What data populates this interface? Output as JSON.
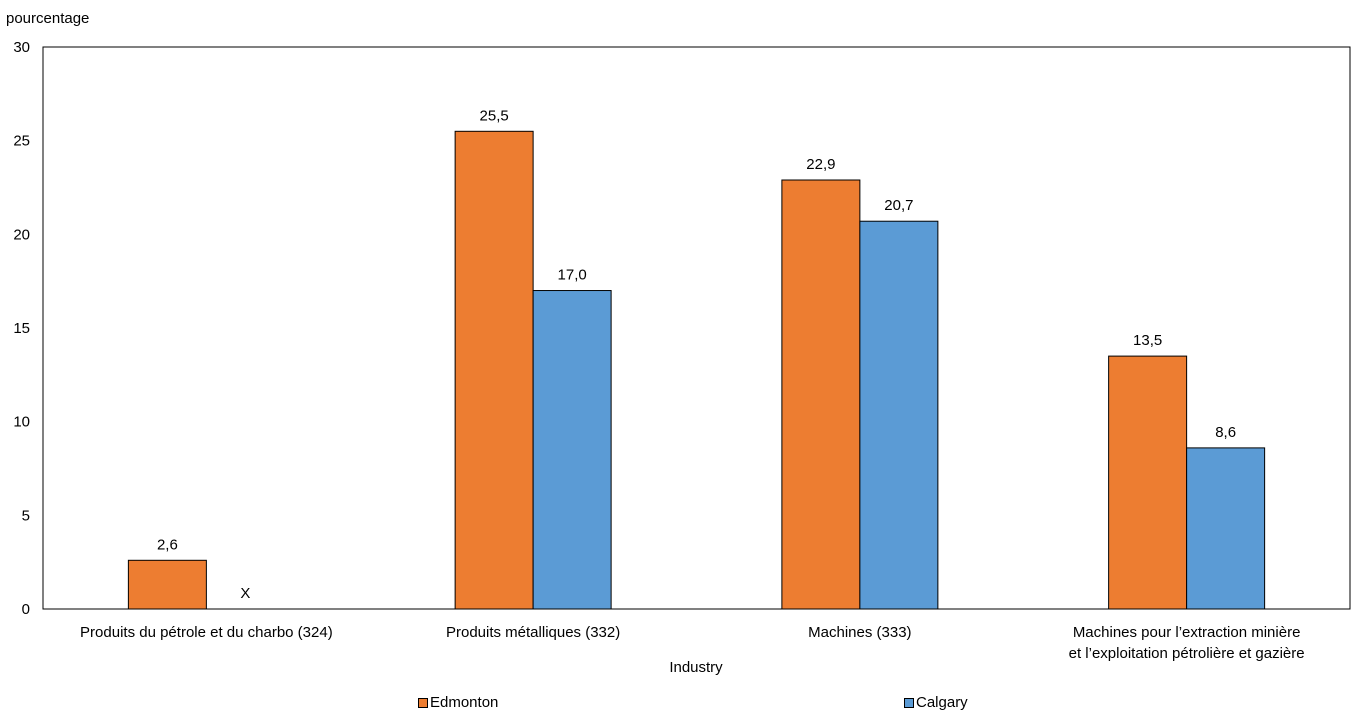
{
  "chart_data": {
    "type": "bar",
    "title": "",
    "ylabel": "pourcentage",
    "xlabel": "Industry",
    "ylim": [
      0,
      30
    ],
    "yticks": [
      0,
      5,
      10,
      15,
      20,
      25,
      30
    ],
    "categories": [
      [
        "Produits du pétrole et du charbo (324)"
      ],
      [
        "Produits métalliques (332)"
      ],
      [
        "Machines (333)"
      ],
      [
        "Machines pour l’extraction minière",
        "et l’exploitation pétrolière et gazière"
      ]
    ],
    "series": [
      {
        "name": "Edmonton",
        "color": "#ED7D31",
        "values": [
          2.6,
          25.5,
          22.9,
          13.5
        ],
        "labels": [
          "2,6",
          "25,5",
          "22,9",
          "13,5"
        ]
      },
      {
        "name": "Calgary",
        "color": "#5B9BD5",
        "values": [
          null,
          17.0,
          20.7,
          8.6
        ],
        "labels": [
          "X",
          "17,0",
          "20,7",
          "8,6"
        ]
      }
    ],
    "grid": false,
    "legend_position": "bottom"
  }
}
